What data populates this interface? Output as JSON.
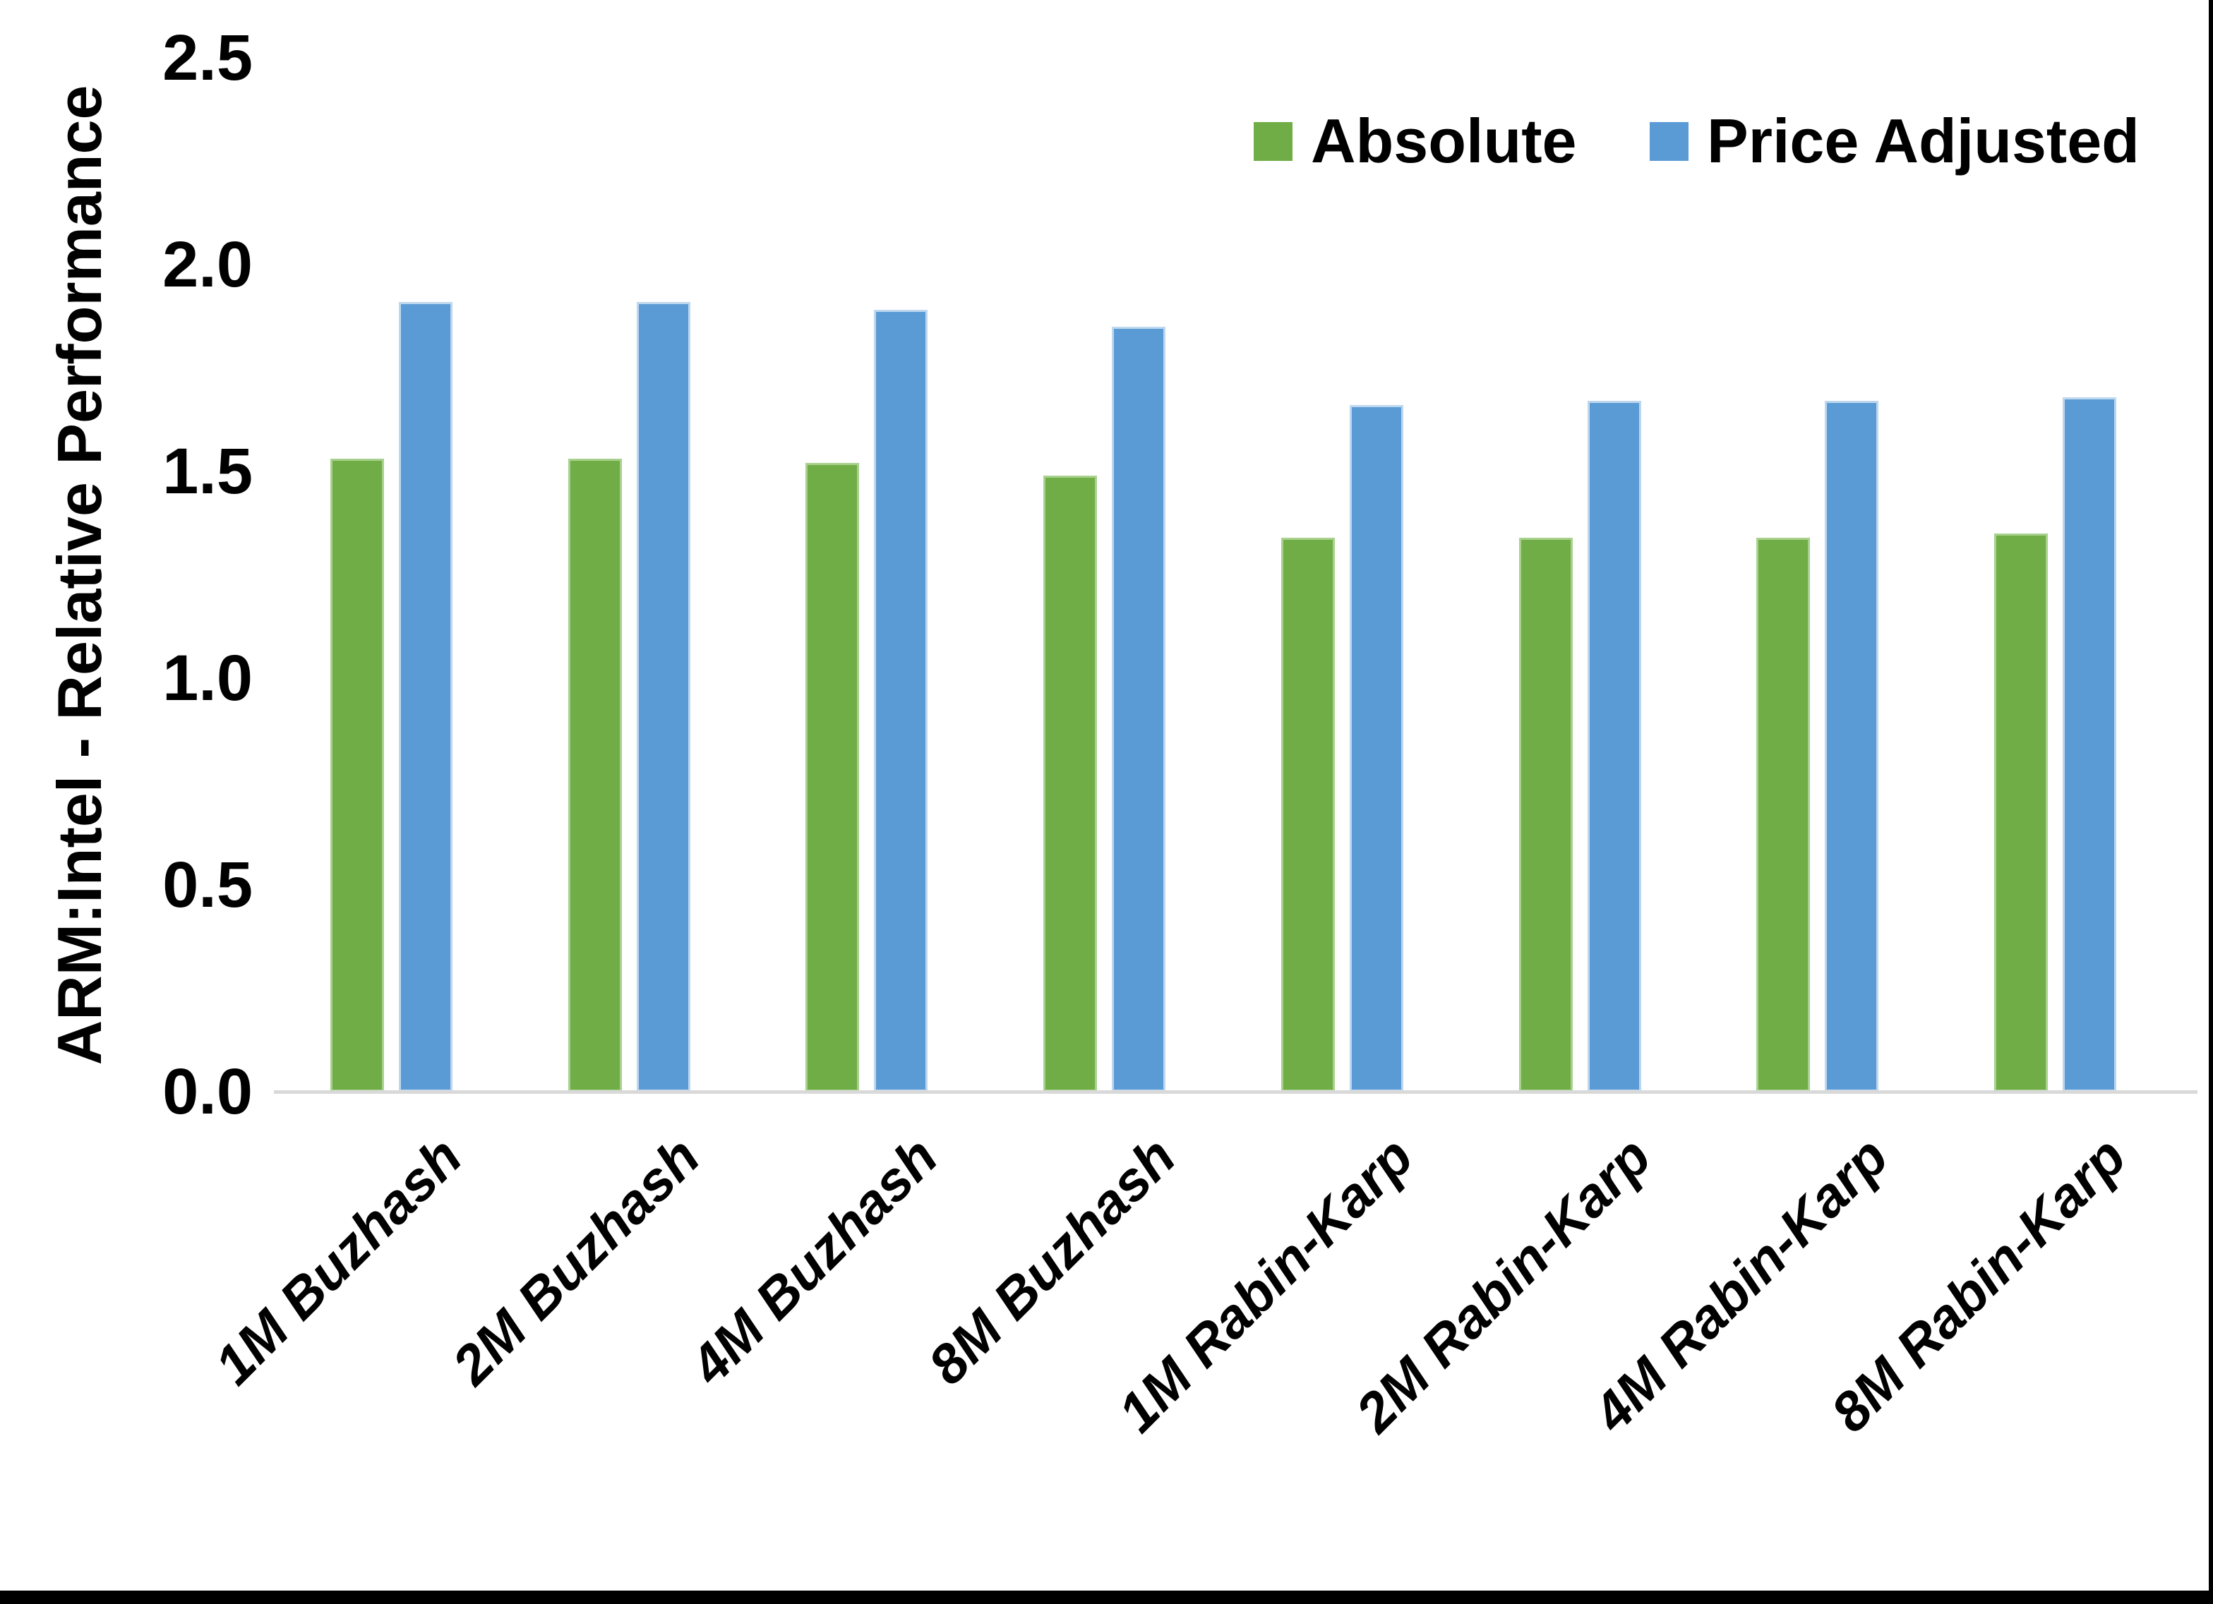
{
  "chart_data": {
    "type": "bar",
    "title": "",
    "ylabel": "ARM:Intel - Relative Performance",
    "xlabel": "",
    "categories": [
      "1M Buzhash",
      "2M Buzhash",
      "4M Buzhash",
      "8M Buzhash",
      "1M Rabin-Karp",
      "2M Rabin-Karp",
      "4M Rabin-Karp",
      "8M Rabin-Karp"
    ],
    "series": [
      {
        "name": "Absolute",
        "color": "#70AD47",
        "values": [
          1.53,
          1.53,
          1.52,
          1.49,
          1.34,
          1.34,
          1.34,
          1.35
        ]
      },
      {
        "name": "Price Adjusted",
        "color": "#5B9BD5",
        "values": [
          1.91,
          1.91,
          1.89,
          1.85,
          1.66,
          1.67,
          1.67,
          1.68
        ]
      }
    ],
    "ylim": [
      0.0,
      2.5
    ],
    "yticks": [
      "0.0",
      "0.5",
      "1.0",
      "1.5",
      "2.0",
      "2.5"
    ],
    "grid": false,
    "legend_position": "top-right",
    "axis_line_color": "#d9d9d9",
    "frame_color": "#000000"
  }
}
